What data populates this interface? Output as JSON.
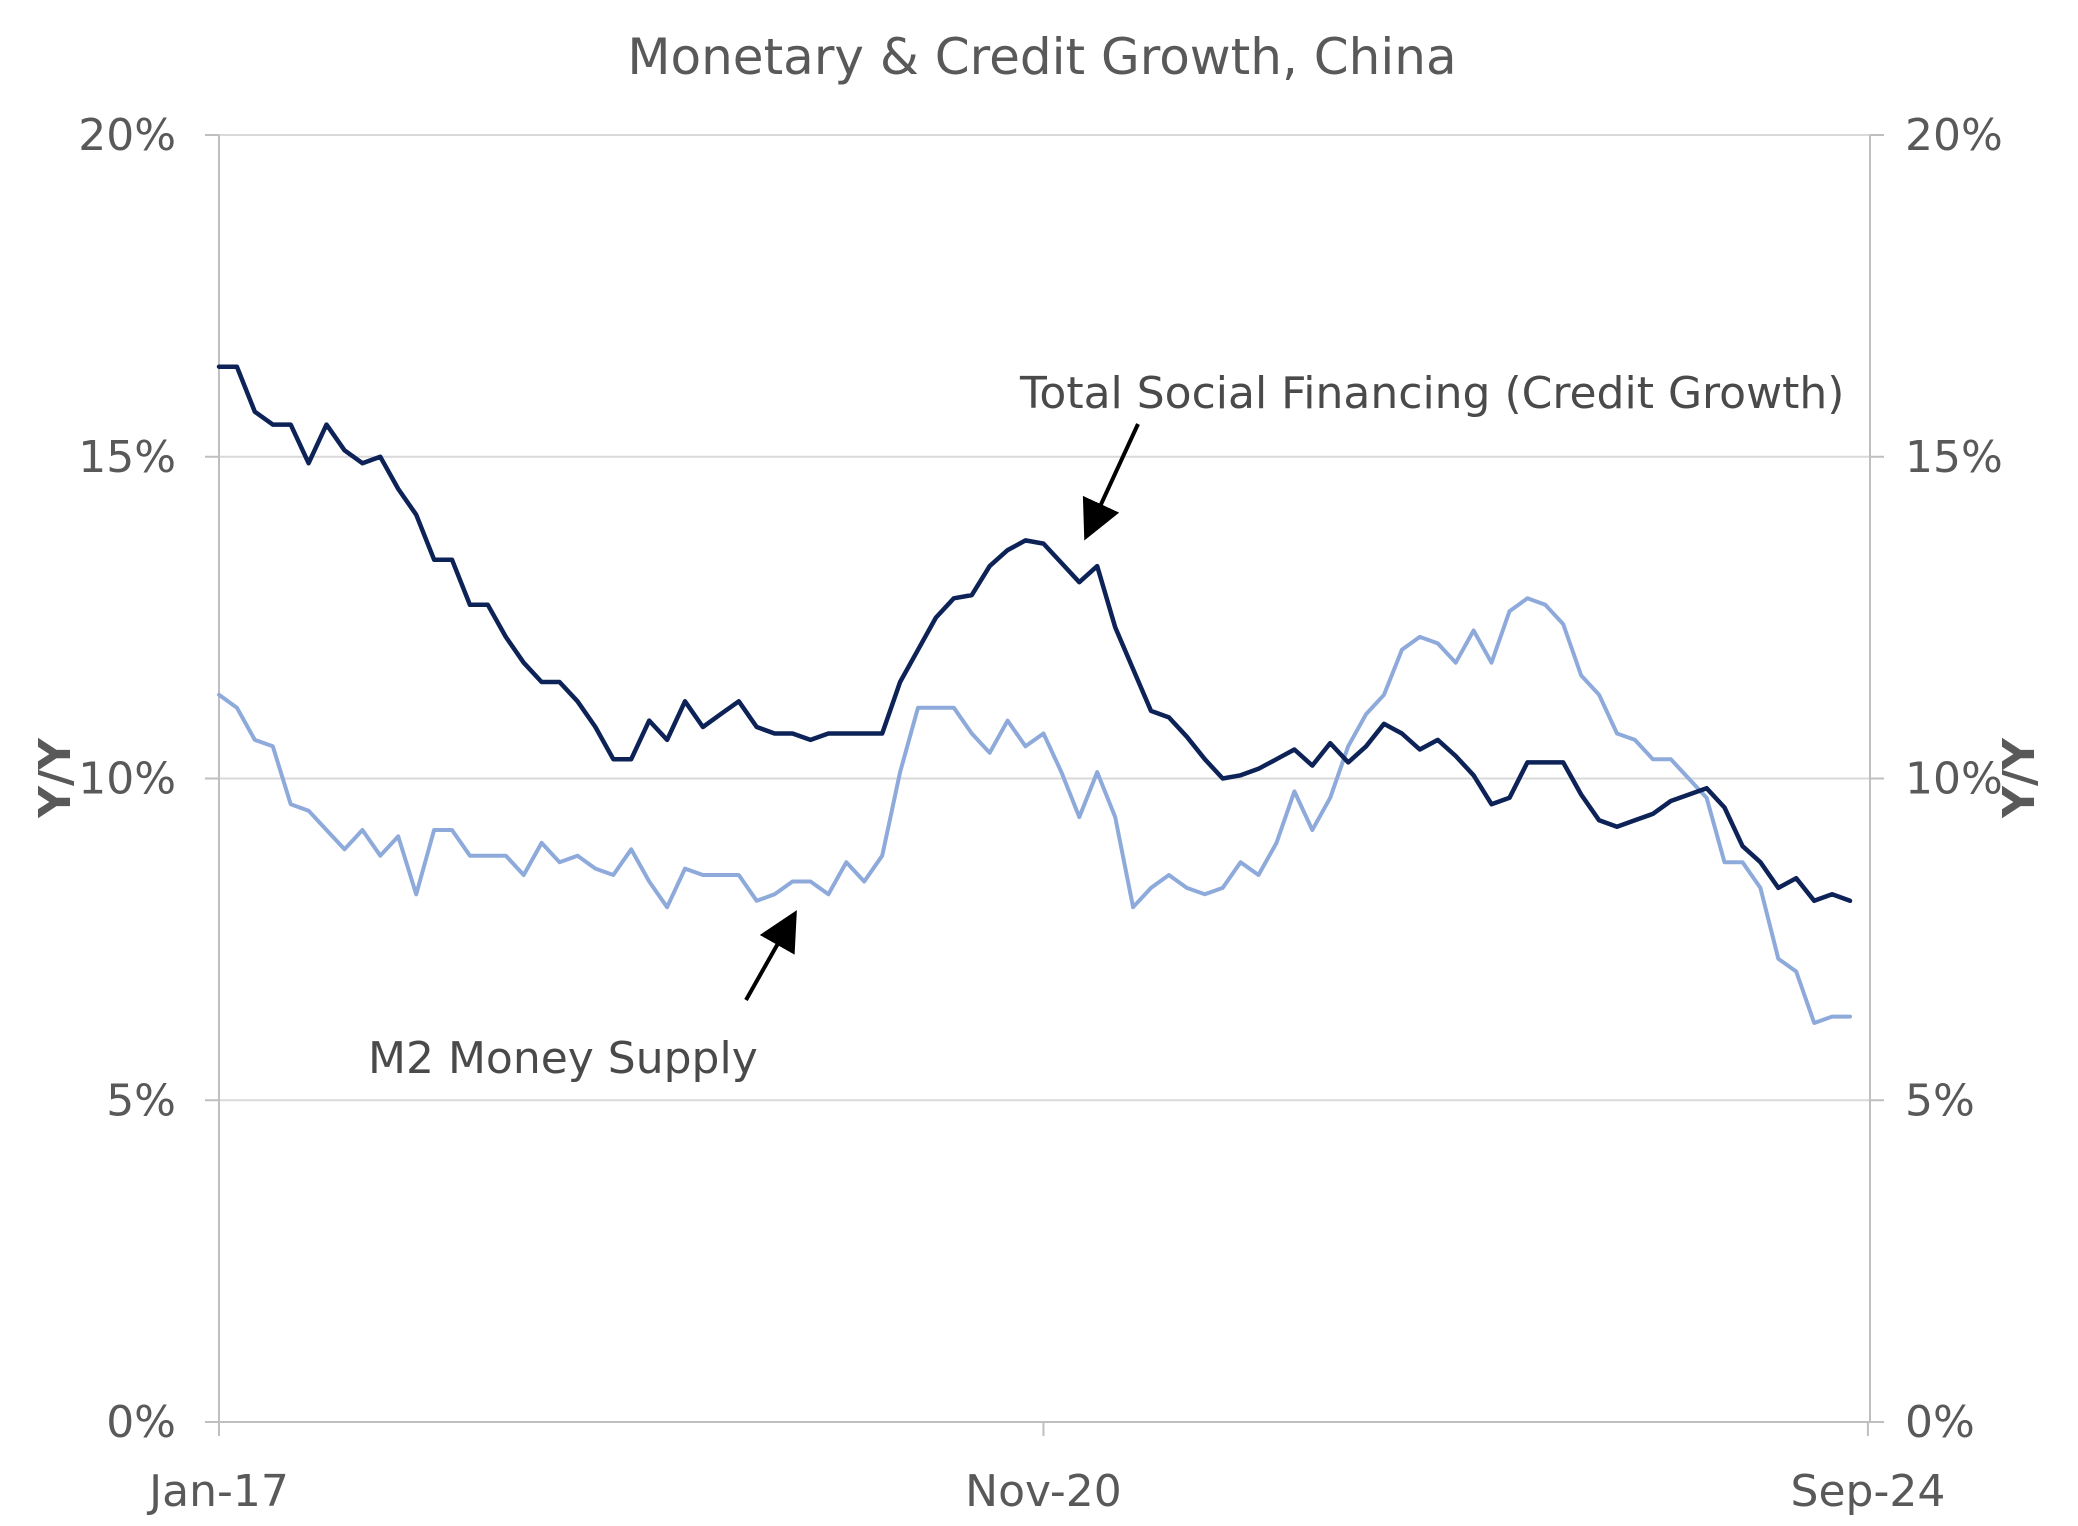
{
  "chart_data": {
    "type": "line",
    "title": "Monetary & Credit Growth, China",
    "ylabel_left": "Y/Y",
    "ylabel_right": "Y/Y",
    "ylim": [
      0,
      20
    ],
    "y_ticks": [
      "0%",
      "5%",
      "10%",
      "15%",
      "20%"
    ],
    "y_tick_values": [
      0,
      5,
      10,
      15,
      20
    ],
    "x_tick_labels": [
      "Jan-17",
      "Nov-20",
      "Sep-24"
    ],
    "x_tick_indices": [
      0,
      46,
      92
    ],
    "x_start": "2017-01",
    "x_end": "2024-09",
    "frequency": "monthly",
    "grid": true,
    "colors": {
      "tsf": "#0d2257",
      "m2": "#8eaadb",
      "grid": "#d9d9d9",
      "axis": "#bfbfbf",
      "text": "#595959"
    },
    "series": [
      {
        "key": "tsf",
        "name": "Total Social Financing (Credit Growth)",
        "values": [
          16.4,
          16.4,
          15.7,
          15.5,
          15.5,
          14.9,
          15.5,
          15.1,
          14.9,
          15.0,
          14.5,
          14.1,
          13.4,
          13.4,
          12.7,
          12.7,
          12.2,
          11.8,
          11.5,
          11.5,
          11.2,
          10.8,
          10.3,
          10.3,
          10.9,
          10.6,
          11.2,
          10.8,
          11.0,
          11.2,
          10.8,
          10.7,
          10.7,
          10.6,
          10.7,
          10.7,
          10.7,
          10.7,
          11.5,
          12.0,
          12.5,
          12.8,
          12.85,
          13.3,
          13.55,
          13.7,
          13.65,
          13.35,
          13.05,
          13.3,
          12.35,
          11.7,
          11.05,
          10.95,
          10.65,
          10.3,
          10.0,
          10.05,
          10.15,
          10.3,
          10.45,
          10.2,
          10.55,
          10.25,
          10.5,
          10.85,
          10.7,
          10.45,
          10.6,
          10.35,
          10.05,
          9.6,
          9.7,
          10.25,
          10.25,
          10.25,
          9.75,
          9.35,
          9.25,
          9.35,
          9.45,
          9.65,
          9.75,
          9.85,
          9.55,
          8.95,
          8.7,
          8.3,
          8.45,
          8.1,
          8.2,
          8.1
        ],
        "unit": "%"
      },
      {
        "key": "m2",
        "name": "M2 Money Supply",
        "values": [
          11.3,
          11.1,
          10.6,
          10.5,
          9.6,
          9.5,
          9.2,
          8.9,
          9.2,
          8.8,
          9.1,
          8.2,
          9.2,
          9.2,
          8.8,
          8.8,
          8.8,
          8.5,
          9.0,
          8.7,
          8.8,
          8.6,
          8.5,
          8.9,
          8.4,
          8.0,
          8.6,
          8.5,
          8.5,
          8.5,
          8.1,
          8.2,
          8.4,
          8.4,
          8.2,
          8.7,
          8.4,
          8.8,
          10.1,
          11.1,
          11.1,
          11.1,
          10.7,
          10.4,
          10.9,
          10.5,
          10.7,
          10.1,
          9.4,
          10.1,
          9.4,
          8.0,
          8.3,
          8.5,
          8.3,
          8.2,
          8.3,
          8.7,
          8.5,
          9.0,
          9.8,
          9.2,
          9.7,
          10.5,
          11.0,
          11.3,
          12.0,
          12.2,
          12.1,
          11.8,
          12.3,
          11.8,
          12.6,
          12.8,
          12.7,
          12.4,
          11.6,
          11.3,
          10.7,
          10.6,
          10.3,
          10.3,
          10.0,
          9.7,
          8.7,
          8.7,
          8.3,
          7.2,
          7.0,
          6.2,
          6.3,
          6.3
        ],
        "unit": "%"
      }
    ],
    "annotations": [
      {
        "key": "tsf_label",
        "text": "Total Social Financing (Credit Growth)",
        "series": "tsf"
      },
      {
        "key": "m2_label",
        "text": "M2 Money Supply",
        "series": "m2"
      }
    ]
  }
}
